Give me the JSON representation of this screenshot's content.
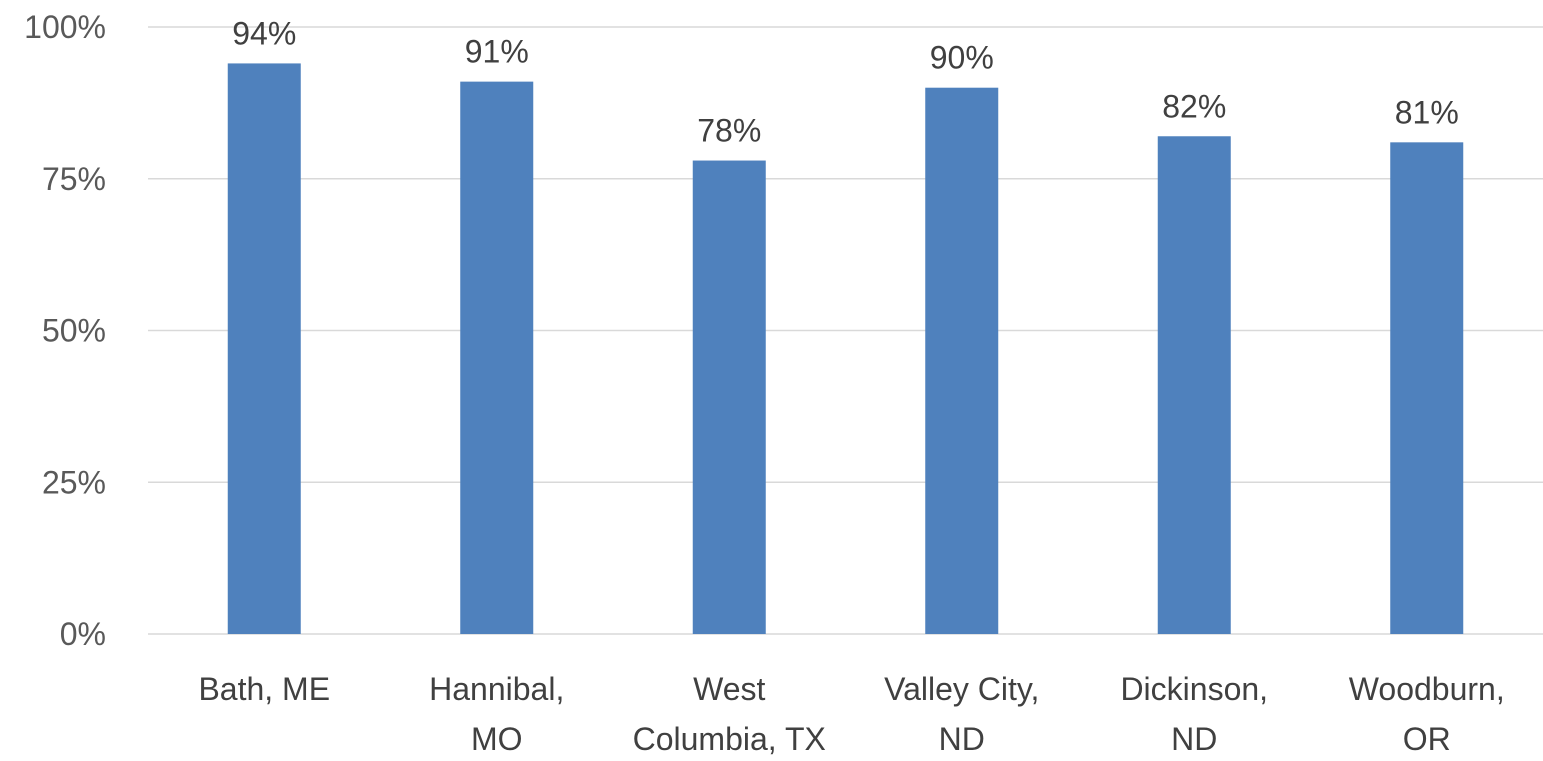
{
  "chart_data": {
    "type": "bar",
    "title": "",
    "xlabel": "",
    "ylabel": "",
    "categories": [
      [
        "Bath, ME"
      ],
      [
        "Hannibal,",
        "MO"
      ],
      [
        "West",
        "Columbia, TX"
      ],
      [
        "Valley City,",
        "ND"
      ],
      [
        "Dickinson,",
        "ND"
      ],
      [
        "Woodburn,",
        "OR"
      ]
    ],
    "values": [
      94,
      91,
      78,
      90,
      82,
      81
    ],
    "data_labels": [
      "94%",
      "91%",
      "78%",
      "90%",
      "82%",
      "81%"
    ],
    "ylim": [
      0,
      100
    ],
    "yticks": [
      0,
      25,
      50,
      75,
      100
    ],
    "ytick_labels": [
      "0%",
      "25%",
      "50%",
      "75%",
      "100%"
    ],
    "grid": true,
    "legend": "none",
    "bar_color": "#4f81bd"
  }
}
